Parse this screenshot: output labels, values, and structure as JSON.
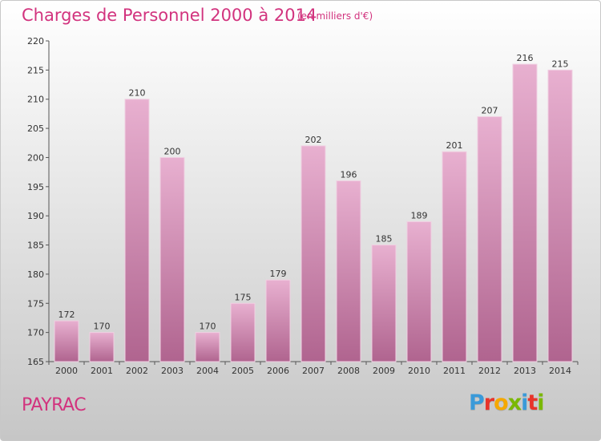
{
  "title": "Charges de Personnel 2000 à 2014",
  "subtitle": "(en milliers d'€)",
  "place": "PAYRAC",
  "logo": {
    "text": "Proxiti",
    "colors": [
      "#3a9ad9",
      "#e8342a",
      "#f5a800",
      "#7ab800",
      "#3a9ad9",
      "#e8342a",
      "#7ab800"
    ]
  },
  "colors": {
    "accent": "#d2337e",
    "bar_top": "#e8b0d0",
    "bar_bottom": "#b0648f"
  },
  "chart_data": {
    "type": "bar",
    "categories": [
      "2000",
      "2001",
      "2002",
      "2003",
      "2004",
      "2005",
      "2006",
      "2007",
      "2008",
      "2009",
      "2010",
      "2011",
      "2012",
      "2013",
      "2014"
    ],
    "values": [
      172,
      170,
      210,
      200,
      170,
      175,
      179,
      202,
      196,
      185,
      189,
      201,
      207,
      216,
      215
    ],
    "title": "Charges de Personnel 2000 à 2014",
    "xlabel": "",
    "ylabel": "",
    "ylim": [
      165,
      220
    ],
    "yticks": [
      165,
      170,
      175,
      180,
      185,
      190,
      195,
      200,
      205,
      210,
      215,
      220
    ],
    "grid": false,
    "legend": "none"
  }
}
